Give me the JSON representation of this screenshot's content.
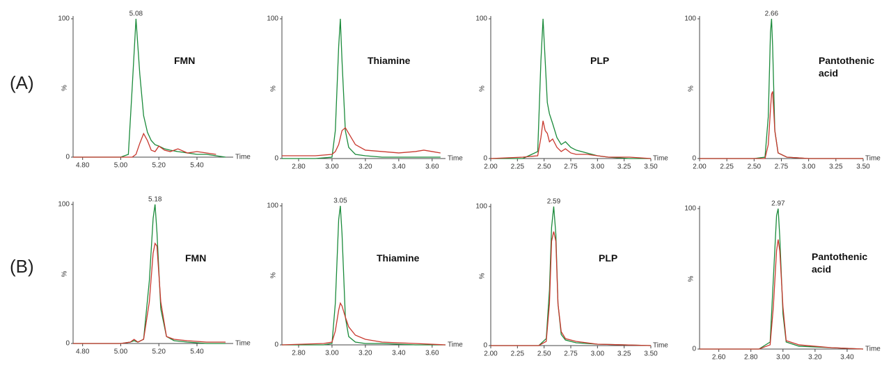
{
  "panel_labels": [
    "(A)",
    "(B)"
  ],
  "chart_data": [
    {
      "type": "line",
      "title": "FMN",
      "peak_label": "5.08",
      "x_label": "Time",
      "y_label": "%",
      "xlim": [
        4.75,
        5.59
      ],
      "xticks": [
        {
          "value": 4.8,
          "label": "4.80"
        },
        {
          "value": 5.0,
          "label": "5.00"
        },
        {
          "value": 5.2,
          "label": "5.20"
        },
        {
          "value": 5.4,
          "label": "5.40"
        }
      ],
      "ylim": [
        0,
        100
      ],
      "yticks": [
        0,
        100
      ],
      "x": [
        4.75,
        5.0,
        5.04,
        5.06,
        5.08,
        5.1,
        5.12,
        5.14,
        5.16,
        5.18,
        5.2,
        5.23,
        5.26,
        5.3,
        5.35,
        5.4,
        5.45,
        5.5,
        5.55
      ],
      "series": [
        {
          "color": "#1a8a3a",
          "values": [
            0,
            0,
            2,
            50,
            100,
            60,
            30,
            18,
            12,
            9,
            8,
            6,
            5,
            4,
            3,
            2,
            2,
            1,
            0
          ]
        },
        {
          "color": "#c8372d",
          "values": [
            0,
            0,
            0,
            0,
            2,
            10,
            17,
            12,
            5,
            4,
            8,
            5,
            4,
            6,
            3,
            4,
            3,
            2,
            null
          ]
        }
      ]
    },
    {
      "type": "line",
      "title": "Thiamine",
      "x_label": "Time",
      "y_label": "%",
      "xlim": [
        2.7,
        3.68
      ],
      "xticks": [
        {
          "value": 2.8,
          "label": "2.80"
        },
        {
          "value": 3.0,
          "label": "3.00"
        },
        {
          "value": 3.2,
          "label": "3.20"
        },
        {
          "value": 3.4,
          "label": "3.40"
        },
        {
          "value": 3.6,
          "label": "3.60"
        }
      ],
      "ylim": [
        0,
        100
      ],
      "yticks": [
        0,
        100
      ],
      "x": [
        2.7,
        2.9,
        3.0,
        3.02,
        3.04,
        3.05,
        3.06,
        3.08,
        3.1,
        3.14,
        3.2,
        3.3,
        3.4,
        3.5,
        3.55,
        3.6,
        3.65
      ],
      "series": [
        {
          "color": "#1a8a3a",
          "values": [
            0,
            0,
            1,
            20,
            80,
            100,
            70,
            20,
            8,
            3,
            2,
            1,
            1,
            1,
            1,
            1,
            1
          ]
        },
        {
          "color": "#c8372d",
          "values": [
            2,
            2,
            3,
            5,
            10,
            15,
            20,
            22,
            18,
            10,
            6,
            5,
            4,
            5,
            6,
            5,
            4
          ]
        }
      ]
    },
    {
      "type": "line",
      "title": "PLP",
      "x_label": "Time",
      "y_label": "%",
      "xlim": [
        2.0,
        3.5
      ],
      "xticks": [
        {
          "value": 2.0,
          "label": "2.00"
        },
        {
          "value": 2.25,
          "label": "2.25"
        },
        {
          "value": 2.5,
          "label": "2.50"
        },
        {
          "value": 2.75,
          "label": "2.75"
        },
        {
          "value": 3.0,
          "label": "3.00"
        },
        {
          "value": 3.25,
          "label": "3.25"
        },
        {
          "value": 3.5,
          "label": "3.50"
        }
      ],
      "ylim": [
        0,
        100
      ],
      "yticks": [
        0,
        100
      ],
      "x": [
        2.0,
        2.3,
        2.44,
        2.47,
        2.49,
        2.51,
        2.53,
        2.55,
        2.58,
        2.62,
        2.66,
        2.7,
        2.75,
        2.8,
        2.9,
        3.0,
        3.1,
        3.3,
        3.5
      ],
      "series": [
        {
          "color": "#1a8a3a",
          "values": [
            0,
            0,
            5,
            70,
            100,
            70,
            40,
            32,
            25,
            15,
            10,
            12,
            8,
            6,
            4,
            2,
            1,
            0,
            0
          ]
        },
        {
          "color": "#c8372d",
          "values": [
            0,
            1,
            2,
            15,
            27,
            20,
            18,
            12,
            14,
            8,
            5,
            7,
            4,
            3,
            3,
            2,
            1,
            1,
            0
          ]
        }
      ]
    },
    {
      "type": "line",
      "title": "Pantothenic acid",
      "peak_label": "2.66",
      "x_label": "Time",
      "y_label": "%",
      "xlim": [
        2.0,
        3.5
      ],
      "xticks": [
        {
          "value": 2.0,
          "label": "2.00"
        },
        {
          "value": 2.25,
          "label": "2.25"
        },
        {
          "value": 2.5,
          "label": "2.50"
        },
        {
          "value": 2.75,
          "label": "2.75"
        },
        {
          "value": 3.0,
          "label": "3.00"
        },
        {
          "value": 3.25,
          "label": "3.25"
        },
        {
          "value": 3.5,
          "label": "3.50"
        }
      ],
      "ylim": [
        0,
        100
      ],
      "yticks": [
        0,
        100
      ],
      "x": [
        2.0,
        2.5,
        2.6,
        2.63,
        2.65,
        2.66,
        2.67,
        2.69,
        2.72,
        2.8,
        3.0,
        3.5
      ],
      "series": [
        {
          "color": "#1a8a3a",
          "values": [
            0,
            0,
            1,
            30,
            90,
            100,
            80,
            20,
            4,
            1,
            0,
            0
          ]
        },
        {
          "color": "#c8372d",
          "values": [
            0,
            0,
            0,
            10,
            35,
            46,
            48,
            20,
            4,
            1,
            0,
            0
          ]
        }
      ]
    },
    {
      "type": "line",
      "title": "FMN",
      "peak_label": "5.18",
      "x_label": "Time",
      "y_label": "%",
      "xlim": [
        4.75,
        5.59
      ],
      "xticks": [
        {
          "value": 4.8,
          "label": "4.80"
        },
        {
          "value": 5.0,
          "label": "5.00"
        },
        {
          "value": 5.2,
          "label": "5.20"
        },
        {
          "value": 5.4,
          "label": "5.40"
        }
      ],
      "ylim": [
        0,
        100
      ],
      "yticks": [
        0,
        100
      ],
      "x": [
        4.75,
        5.0,
        5.05,
        5.07,
        5.09,
        5.12,
        5.15,
        5.17,
        5.18,
        5.19,
        5.21,
        5.24,
        5.28,
        5.35,
        5.45,
        5.55
      ],
      "series": [
        {
          "color": "#1a8a3a",
          "values": [
            0,
            0,
            1,
            2,
            1,
            3,
            45,
            90,
            100,
            80,
            25,
            5,
            2,
            1,
            0,
            0
          ]
        },
        {
          "color": "#c8372d",
          "values": [
            0,
            0,
            1,
            3,
            1,
            3,
            30,
            65,
            72,
            70,
            30,
            5,
            3,
            2,
            1,
            1
          ]
        }
      ]
    },
    {
      "type": "line",
      "title": "Thiamine",
      "peak_label": "3.05",
      "x_label": "Time",
      "y_label": "%",
      "xlim": [
        2.7,
        3.68
      ],
      "xticks": [
        {
          "value": 2.8,
          "label": "2.80"
        },
        {
          "value": 3.0,
          "label": "3.00"
        },
        {
          "value": 3.2,
          "label": "3.20"
        },
        {
          "value": 3.4,
          "label": "3.40"
        },
        {
          "value": 3.6,
          "label": "3.60"
        }
      ],
      "ylim": [
        0,
        100
      ],
      "yticks": [
        0,
        100
      ],
      "x": [
        2.7,
        2.95,
        3.0,
        3.02,
        3.04,
        3.05,
        3.06,
        3.08,
        3.1,
        3.14,
        3.2,
        3.3,
        3.5,
        3.68
      ],
      "series": [
        {
          "color": "#1a8a3a",
          "values": [
            0,
            0,
            1,
            30,
            90,
            100,
            80,
            20,
            6,
            2,
            1,
            1,
            0,
            0
          ]
        },
        {
          "color": "#c8372d",
          "values": [
            0,
            1,
            2,
            10,
            25,
            30,
            28,
            20,
            13,
            7,
            4,
            2,
            1,
            0
          ]
        }
      ]
    },
    {
      "type": "line",
      "title": "PLP",
      "peak_label": "2.59",
      "x_label": "Time",
      "y_label": "%",
      "xlim": [
        2.0,
        3.5
      ],
      "xticks": [
        {
          "value": 2.0,
          "label": "2.00"
        },
        {
          "value": 2.25,
          "label": "2.25"
        },
        {
          "value": 2.5,
          "label": "2.50"
        },
        {
          "value": 2.75,
          "label": "2.75"
        },
        {
          "value": 3.0,
          "label": "3.00"
        },
        {
          "value": 3.25,
          "label": "3.25"
        },
        {
          "value": 3.5,
          "label": "3.50"
        }
      ],
      "ylim": [
        0,
        100
      ],
      "yticks": [
        0,
        100
      ],
      "x": [
        2.0,
        2.45,
        2.52,
        2.55,
        2.57,
        2.59,
        2.61,
        2.63,
        2.66,
        2.7,
        2.8,
        3.0,
        3.5
      ],
      "series": [
        {
          "color": "#1a8a3a",
          "values": [
            0,
            0,
            5,
            40,
            85,
            100,
            80,
            30,
            8,
            4,
            2,
            1,
            0
          ]
        },
        {
          "color": "#c8372d",
          "values": [
            0,
            0,
            3,
            30,
            75,
            82,
            75,
            30,
            10,
            5,
            3,
            1,
            0
          ]
        }
      ]
    },
    {
      "type": "line",
      "title": "Pantothenic acid",
      "peak_label": "2.97",
      "x_label": "Time",
      "y_label": "%",
      "xlim": [
        2.48,
        3.5
      ],
      "xticks": [
        {
          "value": 2.6,
          "label": "2.60"
        },
        {
          "value": 2.8,
          "label": "2.80"
        },
        {
          "value": 3.0,
          "label": "3.00"
        },
        {
          "value": 3.2,
          "label": "3.20"
        },
        {
          "value": 3.4,
          "label": "3.40"
        }
      ],
      "ylim": [
        0,
        100
      ],
      "yticks": [
        0,
        100
      ],
      "x": [
        2.48,
        2.85,
        2.92,
        2.94,
        2.96,
        2.97,
        2.98,
        3.0,
        3.02,
        3.1,
        3.3,
        3.5
      ],
      "series": [
        {
          "color": "#1a8a3a",
          "values": [
            0,
            0,
            5,
            50,
            95,
            100,
            80,
            25,
            5,
            2,
            1,
            0
          ]
        },
        {
          "color": "#c8372d",
          "values": [
            0,
            0,
            3,
            30,
            70,
            78,
            70,
            30,
            6,
            3,
            1,
            0
          ]
        }
      ]
    }
  ]
}
